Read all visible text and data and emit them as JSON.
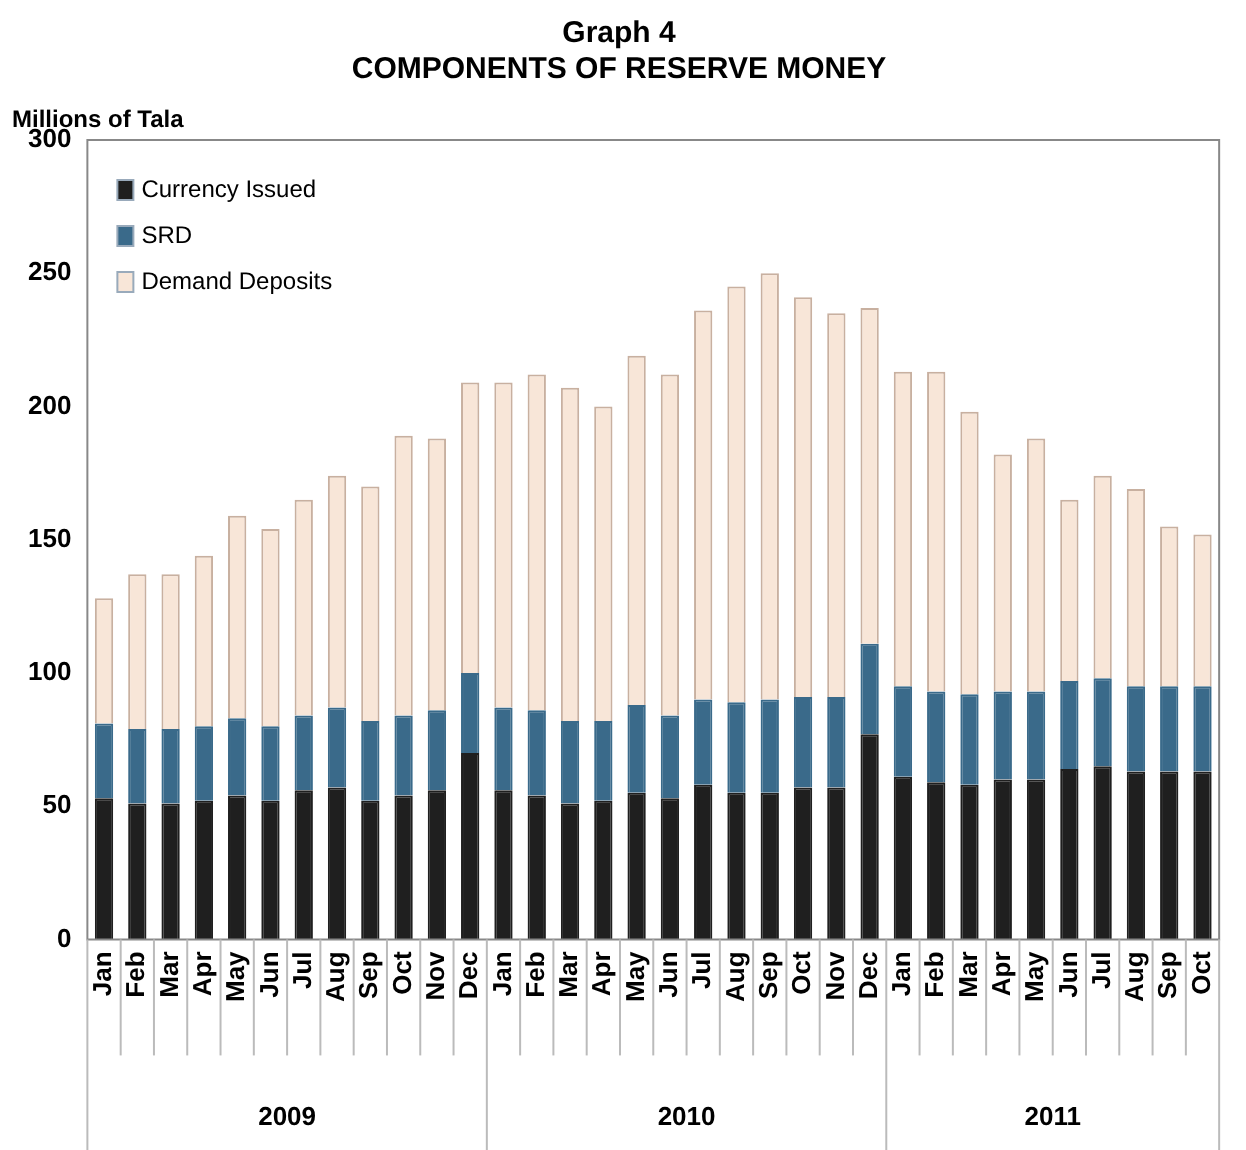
{
  "chart_data": {
    "type": "bar",
    "title": "Graph 4",
    "subtitle": "COMPONENTS OF RESERVE MONEY",
    "ylabel": "Millions of Tala",
    "categories": [
      "Jan",
      "Feb",
      "Mar",
      "Apr",
      "May",
      "Jun",
      "Jul",
      "Aug",
      "Sep",
      "Oct",
      "Nov",
      "Dec",
      "Jan",
      "Feb",
      "Mar",
      "Apr",
      "May",
      "Jun",
      "Jul",
      "Aug",
      "Sep",
      "Oct",
      "Nov",
      "Dec",
      "Jan",
      "Feb",
      "Mar",
      "Apr",
      "May",
      "Jun",
      "Jul",
      "Aug",
      "Sep",
      "Oct"
    ],
    "stacked": true,
    "ylim": [
      0,
      300
    ],
    "yticks": [
      0,
      50,
      100,
      150,
      200,
      250,
      300
    ],
    "grid": false,
    "legend": "top left",
    "annotations": [
      "2009",
      "2010",
      "2011"
    ],
    "series": [
      {
        "name": "Currency Issued",
        "color": "#1f1f1f",
        "values": [
          53,
          51,
          51,
          52,
          54,
          52,
          56,
          57,
          52,
          54,
          56,
          70,
          56,
          54,
          51,
          52,
          55,
          53,
          58,
          55,
          55,
          57,
          57,
          77,
          61,
          59,
          58,
          60,
          60,
          64,
          65,
          63,
          63,
          63
        ]
      },
      {
        "name": "SRD",
        "color": "#3a6a8a",
        "values": [
          28,
          28,
          28,
          28,
          29,
          28,
          28,
          30,
          30,
          30,
          30,
          30,
          31,
          32,
          31,
          30,
          33,
          31,
          32,
          34,
          35,
          34,
          34,
          34,
          34,
          34,
          34,
          33,
          33,
          33,
          33,
          32,
          32,
          32
        ]
      },
      {
        "name": "Demand Deposits",
        "color": "#f8e6d8",
        "values": [
          47,
          58,
          58,
          64,
          76,
          74,
          81,
          87,
          88,
          105,
          102,
          109,
          122,
          126,
          125,
          118,
          131,
          128,
          146,
          156,
          160,
          150,
          144,
          126,
          118,
          120,
          106,
          89,
          95,
          68,
          76,
          74,
          60,
          57
        ]
      }
    ]
  }
}
